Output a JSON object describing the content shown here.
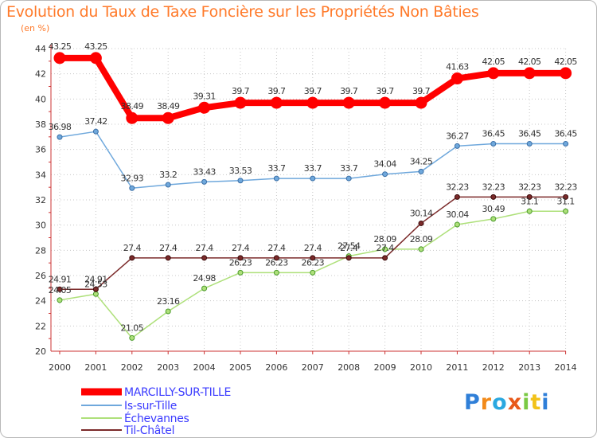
{
  "chart_data": {
    "type": "line",
    "title": "Evolution du Taux de Taxe Foncière sur les Propriétés Non Bâties",
    "ylabel": "(en %)",
    "xlabel": "",
    "x": [
      "2000",
      "2001",
      "2002",
      "2003",
      "2004",
      "2005",
      "2006",
      "2007",
      "2008",
      "2009",
      "2010",
      "2011",
      "2012",
      "2013",
      "2014"
    ],
    "ylim": [
      20,
      44
    ],
    "yticks": [
      "20",
      "22",
      "24",
      "26",
      "28",
      "30",
      "32",
      "34",
      "36",
      "38",
      "40",
      "42",
      "44"
    ],
    "series": [
      {
        "name": "MARCILLY-SUR-TILLE",
        "color": "#ff0000",
        "values": [
          43.25,
          43.25,
          38.49,
          38.49,
          39.31,
          39.7,
          39.7,
          39.7,
          39.7,
          39.7,
          39.7,
          41.63,
          42.05,
          42.05,
          42.05
        ],
        "labels": [
          "43.25",
          "43.25",
          "38.49",
          "38.49",
          "39.31",
          "39.7",
          "39.7",
          "39.7",
          "39.7",
          "39.7",
          "39.7",
          "41.63",
          "42.05",
          "42.05",
          "42.05"
        ]
      },
      {
        "name": "Is-sur-Tille",
        "color": "#6fa8dc",
        "values": [
          36.98,
          37.42,
          32.93,
          33.2,
          33.43,
          33.53,
          33.7,
          33.7,
          33.7,
          34.04,
          34.25,
          36.27,
          36.45,
          36.45,
          36.45
        ],
        "labels": [
          "36.98",
          "37.42",
          "32.93",
          "33.2",
          "33.43",
          "33.53",
          "33.7",
          "33.7",
          "33.7",
          "34.04",
          "34.25",
          "36.27",
          "36.45",
          "36.45",
          "36.45"
        ]
      },
      {
        "name": "Échevannes",
        "color": "#aee07a",
        "values": [
          24.05,
          24.53,
          21.05,
          23.16,
          24.98,
          26.23,
          26.23,
          26.23,
          27.54,
          28.09,
          28.09,
          30.04,
          30.49,
          31.1,
          31.1
        ],
        "labels": [
          "24.05",
          "24.53",
          "21.05",
          "23.16",
          "24.98",
          "26.23",
          "26.23",
          "26.23",
          "27.54",
          "28.09",
          "28.09",
          "30.04",
          "30.49",
          "31.1",
          "31.1"
        ]
      },
      {
        "name": "Til-Châtel",
        "color": "#7b2a2a",
        "values": [
          24.91,
          24.91,
          27.4,
          27.4,
          27.4,
          27.4,
          27.4,
          27.4,
          27.4,
          27.4,
          30.14,
          32.23,
          32.23,
          32.23,
          32.23
        ],
        "labels": [
          "24.91",
          "24.91",
          "27.4",
          "27.4",
          "27.4",
          "27.4",
          "27.4",
          "27.4",
          "27.4",
          "27.4",
          "30.14",
          "32.23",
          "32.23",
          "32.23",
          "32.23"
        ]
      }
    ]
  },
  "legend": {
    "items": [
      {
        "label": "MARCILLY-SUR-TILLE",
        "color": "#3b3bff"
      },
      {
        "label": "Is-sur-Tille",
        "color": "#3b3bff"
      },
      {
        "label": "Échevannes",
        "color": "#3b3bff"
      },
      {
        "label": "Til-Châtel",
        "color": "#3b3bff"
      }
    ]
  },
  "logo": {
    "text": "Proxiti"
  }
}
